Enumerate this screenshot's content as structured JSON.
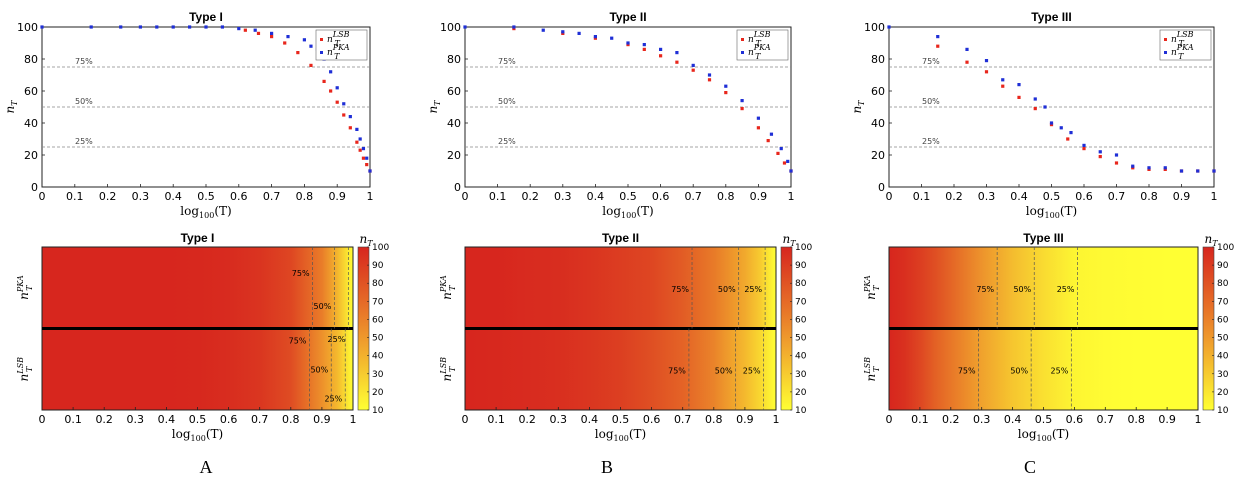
{
  "figure": {
    "panel_labels": [
      "A",
      "B",
      "C"
    ]
  },
  "colors": {
    "lsb": "#e8261c",
    "pka": "#1f2fd6",
    "heat_low": "#ffff33",
    "heat_high": "#d7261e"
  },
  "chart_data": [
    {
      "type": "scatter",
      "panel": "A",
      "title": "Type I",
      "xlabel": "log100(T)",
      "ylabel": "nT",
      "xlim": [
        0,
        1
      ],
      "ylim": [
        0,
        100
      ],
      "xticks": [
        "0",
        "0.1",
        "0.2",
        "0.3",
        "0.4",
        "0.5",
        "0.6",
        "0.7",
        "0.8",
        "0.9",
        "1"
      ],
      "yticks": [
        "0",
        "20",
        "40",
        "60",
        "80",
        "100"
      ],
      "reference_lines": [
        {
          "y": 75,
          "label": "75%"
        },
        {
          "y": 50,
          "label": "50%"
        },
        {
          "y": 25,
          "label": "25%"
        }
      ],
      "legend": {
        "position": "top-right",
        "entries": [
          "nT LSB",
          "nT PKA"
        ]
      },
      "series": [
        {
          "name": "nT LSB",
          "color": "#e8261c",
          "x": [
            0.62,
            0.66,
            0.7,
            0.74,
            0.78,
            0.82,
            0.86,
            0.88,
            0.9,
            0.92,
            0.94,
            0.96,
            0.97,
            0.98,
            0.99,
            1.0
          ],
          "y": [
            98,
            96,
            94,
            90,
            84,
            76,
            66,
            60,
            53,
            45,
            37,
            28,
            23,
            18,
            14,
            10
          ]
        },
        {
          "name": "nT PKA",
          "color": "#1f2fd6",
          "x": [
            0.0,
            0.15,
            0.24,
            0.3,
            0.35,
            0.4,
            0.45,
            0.5,
            0.55,
            0.6,
            0.65,
            0.7,
            0.75,
            0.8,
            0.82,
            0.84,
            0.86,
            0.88,
            0.9,
            0.92,
            0.94,
            0.96,
            0.97,
            0.98,
            0.99,
            1.0
          ],
          "y": [
            100,
            100,
            100,
            100,
            100,
            100,
            100,
            100,
            100,
            99,
            98,
            96,
            94,
            92,
            88,
            86,
            80,
            72,
            62,
            52,
            44,
            36,
            30,
            24,
            18,
            10
          ]
        }
      ]
    },
    {
      "type": "scatter",
      "panel": "B",
      "title": "Type II",
      "xlabel": "log100(T)",
      "ylabel": "nT",
      "xlim": [
        0,
        1
      ],
      "ylim": [
        0,
        100
      ],
      "xticks": [
        "0",
        "0.1",
        "0.2",
        "0.3",
        "0.4",
        "0.5",
        "0.6",
        "0.7",
        "0.8",
        "0.9",
        "1"
      ],
      "yticks": [
        "0",
        "20",
        "40",
        "60",
        "80",
        "100"
      ],
      "reference_lines": [
        {
          "y": 75,
          "label": "75%"
        },
        {
          "y": 50,
          "label": "50%"
        },
        {
          "y": 25,
          "label": "25%"
        }
      ],
      "legend": {
        "position": "top-right",
        "entries": [
          "nT LSB",
          "nT PKA"
        ]
      },
      "series": [
        {
          "name": "nT LSB",
          "color": "#e8261c",
          "x": [
            0.15,
            0.3,
            0.4,
            0.5,
            0.55,
            0.6,
            0.65,
            0.7,
            0.75,
            0.8,
            0.85,
            0.9,
            0.93,
            0.96,
            0.98,
            1.0
          ],
          "y": [
            99,
            96,
            93,
            89,
            86,
            82,
            78,
            73,
            67,
            59,
            49,
            37,
            29,
            21,
            15,
            10
          ]
        },
        {
          "name": "nT PKA",
          "color": "#1f2fd6",
          "x": [
            0.0,
            0.15,
            0.24,
            0.3,
            0.35,
            0.4,
            0.45,
            0.5,
            0.55,
            0.6,
            0.65,
            0.7,
            0.75,
            0.8,
            0.85,
            0.9,
            0.94,
            0.97,
            0.99,
            1.0
          ],
          "y": [
            100,
            100,
            98,
            97,
            96,
            94,
            93,
            90,
            89,
            86,
            84,
            76,
            70,
            63,
            54,
            43,
            33,
            24,
            16,
            10
          ]
        }
      ]
    },
    {
      "type": "scatter",
      "panel": "C",
      "title": "Type III",
      "xlabel": "log100(T)",
      "ylabel": "nT",
      "xlim": [
        0,
        1
      ],
      "ylim": [
        0,
        100
      ],
      "xticks": [
        "0",
        "0.1",
        "0.2",
        "0.3",
        "0.4",
        "0.5",
        "0.6",
        "0.7",
        "0.8",
        "0.9",
        "1"
      ],
      "yticks": [
        "0",
        "20",
        "40",
        "60",
        "80",
        "100"
      ],
      "reference_lines": [
        {
          "y": 75,
          "label": "75%"
        },
        {
          "y": 50,
          "label": "50%"
        },
        {
          "y": 25,
          "label": "25%"
        }
      ],
      "legend": {
        "position": "top-right",
        "entries": [
          "nT LSB",
          "nT PKA"
        ]
      },
      "series": [
        {
          "name": "nT LSB",
          "color": "#e8261c",
          "x": [
            0.15,
            0.24,
            0.3,
            0.35,
            0.4,
            0.45,
            0.5,
            0.55,
            0.6,
            0.65,
            0.7,
            0.75,
            0.8,
            0.85,
            0.9,
            0.95,
            1.0
          ],
          "y": [
            88,
            78,
            72,
            63,
            56,
            49,
            39,
            30,
            24,
            19,
            15,
            12,
            11,
            11,
            10,
            10,
            10
          ]
        },
        {
          "name": "nT PKA",
          "color": "#1f2fd6",
          "x": [
            0.0,
            0.15,
            0.24,
            0.3,
            0.35,
            0.4,
            0.45,
            0.48,
            0.5,
            0.53,
            0.56,
            0.6,
            0.65,
            0.7,
            0.75,
            0.8,
            0.85,
            0.9,
            0.95,
            1.0
          ],
          "y": [
            100,
            94,
            86,
            79,
            67,
            64,
            55,
            50,
            40,
            37,
            34,
            26,
            22,
            20,
            13,
            12,
            12,
            10,
            10,
            10
          ]
        }
      ]
    },
    {
      "type": "heatmap",
      "panel": "A",
      "title": "Type I",
      "xlabel": "log100(T)",
      "rows": [
        "nT PKA",
        "nT LSB"
      ],
      "xlim": [
        0,
        1
      ],
      "xticks": [
        "0",
        "0.1",
        "0.2",
        "0.3",
        "0.4",
        "0.5",
        "0.6",
        "0.7",
        "0.8",
        "0.9",
        "1"
      ],
      "colorbar": {
        "label": "nT",
        "range": [
          10,
          100
        ],
        "ticks": [
          "10",
          "20",
          "30",
          "40",
          "50",
          "60",
          "70",
          "80",
          "90",
          "100"
        ]
      },
      "x": [
        0,
        0.1,
        0.2,
        0.3,
        0.4,
        0.5,
        0.6,
        0.7,
        0.8,
        0.9,
        0.95,
        1.0
      ],
      "values": [
        [
          100,
          100,
          100,
          100,
          100,
          99,
          98,
          94,
          86,
          62,
          38,
          10
        ],
        [
          100,
          100,
          100,
          100,
          100,
          99,
          97,
          93,
          83,
          53,
          37,
          10
        ]
      ],
      "threshold_lines": [
        {
          "row": "nT PKA",
          "x": 0.87,
          "label": "75%"
        },
        {
          "row": "nT PKA",
          "x": 0.94,
          "label": "50%"
        },
        {
          "row": "nT PKA",
          "x": 0.985,
          "label": "25%"
        },
        {
          "row": "nT LSB",
          "x": 0.86,
          "label": "75%"
        },
        {
          "row": "nT LSB",
          "x": 0.93,
          "label": "50%"
        },
        {
          "row": "nT LSB",
          "x": 0.975,
          "label": "25%"
        }
      ]
    },
    {
      "type": "heatmap",
      "panel": "B",
      "title": "Type II",
      "xlabel": "log100(T)",
      "rows": [
        "nT PKA",
        "nT LSB"
      ],
      "xlim": [
        0,
        1
      ],
      "xticks": [
        "0",
        "0.1",
        "0.2",
        "0.3",
        "0.4",
        "0.5",
        "0.6",
        "0.7",
        "0.8",
        "0.9",
        "1"
      ],
      "colorbar": {
        "label": "nT",
        "range": [
          10,
          100
        ],
        "ticks": [
          "10",
          "20",
          "30",
          "40",
          "50",
          "60",
          "70",
          "80",
          "90",
          "100"
        ]
      },
      "x": [
        0,
        0.1,
        0.2,
        0.3,
        0.4,
        0.5,
        0.6,
        0.7,
        0.8,
        0.9,
        0.95,
        1.0
      ],
      "values": [
        [
          100,
          100,
          98,
          97,
          94,
          90,
          86,
          76,
          63,
          43,
          30,
          10
        ],
        [
          100,
          99,
          98,
          96,
          93,
          89,
          82,
          73,
          59,
          37,
          25,
          10
        ]
      ],
      "threshold_lines": [
        {
          "row": "nT PKA",
          "x": 0.73,
          "label": "75%"
        },
        {
          "row": "nT PKA",
          "x": 0.88,
          "label": "50%"
        },
        {
          "row": "nT PKA",
          "x": 0.965,
          "label": "25%"
        },
        {
          "row": "nT LSB",
          "x": 0.72,
          "label": "75%"
        },
        {
          "row": "nT LSB",
          "x": 0.87,
          "label": "50%"
        },
        {
          "row": "nT LSB",
          "x": 0.96,
          "label": "25%"
        }
      ]
    },
    {
      "type": "heatmap",
      "panel": "C",
      "title": "Type III",
      "xlabel": "log100(T)",
      "rows": [
        "nT PKA",
        "nT LSB"
      ],
      "xlim": [
        0,
        1
      ],
      "xticks": [
        "0",
        "0.1",
        "0.2",
        "0.3",
        "0.4",
        "0.5",
        "0.6",
        "0.7",
        "0.8",
        "0.9",
        "1"
      ],
      "colorbar": {
        "label": "nT",
        "range": [
          10,
          100
        ],
        "ticks": [
          "10",
          "20",
          "30",
          "40",
          "50",
          "60",
          "70",
          "80",
          "90",
          "100"
        ]
      },
      "x": [
        0,
        0.05,
        0.1,
        0.15,
        0.2,
        0.3,
        0.4,
        0.5,
        0.6,
        0.7,
        0.8,
        0.9,
        1.0
      ],
      "values": [
        [
          100,
          96,
          90,
          82,
          72,
          52,
          36,
          24,
          14,
          12,
          11,
          10,
          10
        ],
        [
          100,
          95,
          86,
          74,
          64,
          46,
          32,
          22,
          14,
          11,
          10,
          10,
          10
        ]
      ],
      "threshold_lines": [
        {
          "row": "nT PKA",
          "x": 0.35,
          "label": "75%"
        },
        {
          "row": "nT PKA",
          "x": 0.47,
          "label": "50%"
        },
        {
          "row": "nT PKA",
          "x": 0.61,
          "label": "25%"
        },
        {
          "row": "nT LSB",
          "x": 0.29,
          "label": "75%"
        },
        {
          "row": "nT LSB",
          "x": 0.46,
          "label": "50%"
        },
        {
          "row": "nT LSB",
          "x": 0.59,
          "label": "25%"
        }
      ]
    }
  ]
}
